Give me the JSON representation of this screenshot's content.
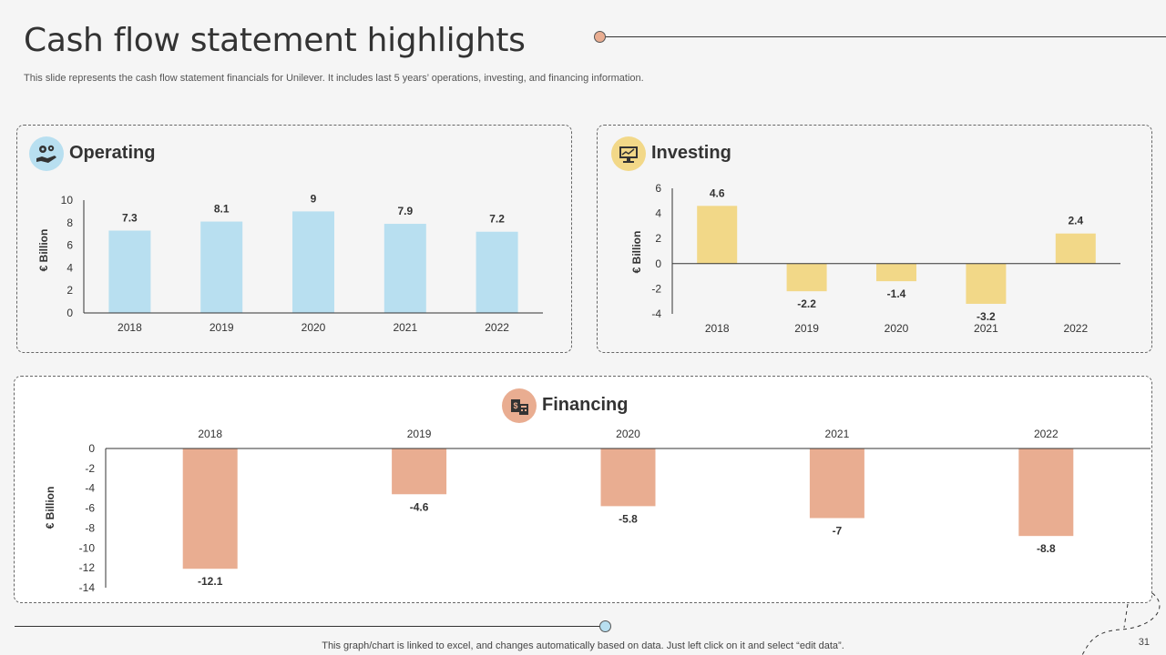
{
  "header": {
    "title": "Cash flow statement highlights",
    "subtitle": "This slide represents the cash flow statement financials for Unilever. It includes last 5 years’ operations, investing, and financing information."
  },
  "panels": {
    "operating": {
      "title": "Operating",
      "icon": "gears-hand-icon",
      "color": "#b8dff0"
    },
    "investing": {
      "title": "Investing",
      "icon": "monitor-chart-icon",
      "color": "#f2d888"
    },
    "financing": {
      "title": "Financing",
      "icon": "money-calculator-icon",
      "color": "#e9ad91"
    }
  },
  "chart_data": [
    {
      "id": "operating",
      "type": "bar",
      "categories": [
        "2018",
        "2019",
        "2020",
        "2021",
        "2022"
      ],
      "values": [
        7.3,
        8.1,
        9,
        7.9,
        7.2
      ],
      "ylabel": "€ Billion",
      "ylim": [
        0,
        10
      ],
      "yticks": [
        0,
        2,
        4,
        6,
        8,
        10
      ],
      "color": "#b8dff0",
      "grid": false
    },
    {
      "id": "investing",
      "type": "bar",
      "categories": [
        "2018",
        "2019",
        "2020",
        "2021",
        "2022"
      ],
      "values": [
        4.6,
        -2.2,
        -1.4,
        -3.2,
        2.4
      ],
      "ylabel": "€ Billion",
      "ylim": [
        -4,
        6
      ],
      "yticks": [
        -4,
        -2,
        0,
        2,
        4,
        6
      ],
      "color": "#f2d888",
      "grid": false
    },
    {
      "id": "financing",
      "type": "bar",
      "categories": [
        "2018",
        "2019",
        "2020",
        "2021",
        "2022"
      ],
      "values": [
        -12.1,
        -4.6,
        -5.8,
        -7,
        -8.8
      ],
      "ylabel": "€ Billion",
      "ylim": [
        -14,
        0
      ],
      "yticks": [
        0,
        -2,
        -4,
        -6,
        -8,
        -10,
        -12,
        -14
      ],
      "color": "#e9ad91",
      "grid": false
    }
  ],
  "footer": {
    "note": "This graph/chart is linked to excel,  and changes automatically based on data. Just left click on it and select “edit data”.",
    "page": "31"
  }
}
